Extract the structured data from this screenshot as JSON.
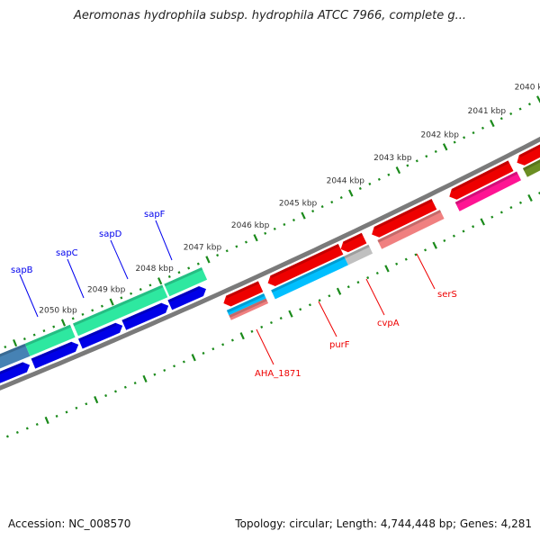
{
  "title": "Aeromonas hydrophila subsp. hydrophila ATCC 7966, complete g...",
  "footer": {
    "accession": "Accession: NC_008570",
    "summary": "Topology: circular; Length: 4,744,448 bp; Genes: 4,281"
  },
  "colors": {
    "backbone": "#7a7a7a",
    "ticks": "#1a8a1a",
    "fwd_label": "#0000ee",
    "rev_label": "#ee0000"
  },
  "scale": {
    "unit": "kbp",
    "major_ticks": [
      2040,
      2041,
      2042,
      2043,
      2044,
      2045,
      2046,
      2047,
      2048,
      2049,
      2050
    ],
    "labels": [
      "2040 kbp",
      "2041 kbp",
      "2042 kbp",
      "2043 kbp",
      "2044 kbp",
      "2045 kbp",
      "2046 kbp",
      "2047 kbp",
      "2048 kbp",
      "2049 kbp",
      "2050 kbp"
    ]
  },
  "features": [
    {
      "track": "A",
      "start": 2051.9,
      "end": 2050.83,
      "color": "#4682b4",
      "dir": 0
    },
    {
      "track": "A",
      "start": 2050.83,
      "end": 2049.9,
      "color": "#2ee8a0",
      "dir": 0
    },
    {
      "track": "A",
      "start": 2049.84,
      "end": 2047.99,
      "color": "#2ee8a0",
      "dir": 0
    },
    {
      "track": "A",
      "start": 2047.95,
      "end": 2047.17,
      "color": "#2ee8a0",
      "dir": 0
    },
    {
      "track": "B",
      "start": 2051.9,
      "end": 2050.9,
      "color": "#0000e8",
      "dir": 1
    },
    {
      "track": "B",
      "start": 2050.83,
      "end": 2049.9,
      "color": "#0000e8",
      "dir": 1
    },
    {
      "track": "B",
      "start": 2049.86,
      "end": 2048.99,
      "color": "#0000e8",
      "dir": 1
    },
    {
      "track": "B",
      "start": 2048.96,
      "end": 2048.04,
      "color": "#0000e8",
      "dir": 1
    },
    {
      "track": "B",
      "start": 2048.01,
      "end": 2047.26,
      "color": "#0000e8",
      "dir": 1
    },
    {
      "track": "C",
      "start": 2047.07,
      "end": 2046.3,
      "color": "#ee0000",
      "dir": -1
    },
    {
      "track": "C",
      "start": 2046.15,
      "end": 2044.63,
      "color": "#ee0000",
      "dir": -1
    },
    {
      "track": "C",
      "start": 2044.63,
      "end": 2044.14,
      "color": "#ee0000",
      "dir": -1
    },
    {
      "track": "C",
      "start": 2043.98,
      "end": 2042.67,
      "color": "#ee0000",
      "dir": -1
    },
    {
      "track": "C",
      "start": 2042.35,
      "end": 2041.05,
      "color": "#ee0000",
      "dir": -1
    },
    {
      "track": "C",
      "start": 2040.92,
      "end": 2039.6,
      "color": "#ee0000",
      "dir": -1
    },
    {
      "track": "D2",
      "start": 2047.07,
      "end": 2046.3,
      "color": "#f08080",
      "dir": 0
    },
    {
      "track": "D1",
      "start": 2047.07,
      "end": 2046.3,
      "color": "#00bfff",
      "dir": 0
    },
    {
      "track": "D",
      "start": 2046.15,
      "end": 2044.63,
      "color": "#00bfff",
      "dir": 0
    },
    {
      "track": "D",
      "start": 2044.63,
      "end": 2044.12,
      "color": "#c0c0c0",
      "dir": 0
    },
    {
      "track": "D",
      "start": 2043.93,
      "end": 2042.62,
      "color": "#f08080",
      "dir": 0
    },
    {
      "track": "D",
      "start": 2042.3,
      "end": 2041.0,
      "color": "#ff1493",
      "dir": 0
    },
    {
      "track": "D",
      "start": 2040.87,
      "end": 2039.6,
      "color": "#6b8e23",
      "dir": 0
    }
  ],
  "genes": {
    "sapB": "sapB",
    "sapC": "sapC",
    "sapD": "sapD",
    "sapF": "sapF",
    "AHA_1871": "AHA_1871",
    "purF": "purF",
    "cvpA": "cvpA",
    "serS": "serS"
  }
}
